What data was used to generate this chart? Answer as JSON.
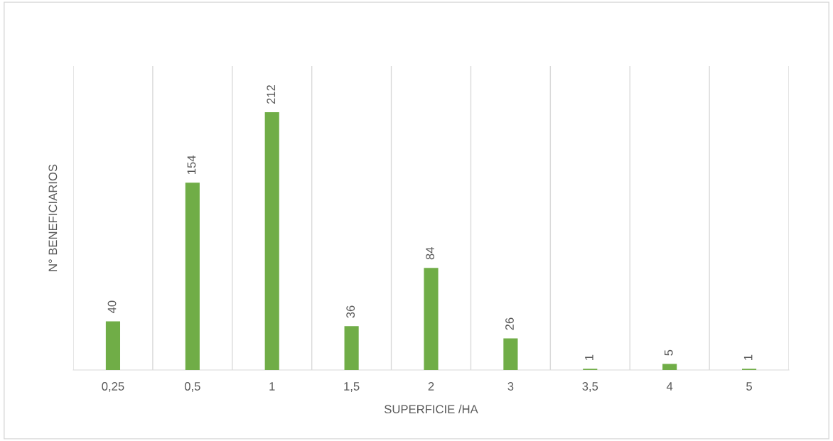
{
  "chart_data": {
    "type": "bar",
    "categories": [
      "0,25",
      "0,5",
      "1",
      "1,5",
      "2",
      "3",
      "3,5",
      "4",
      "5"
    ],
    "values": [
      40,
      154,
      212,
      36,
      84,
      26,
      1,
      5,
      1
    ],
    "color": "#70ad47",
    "xlabel": "SUPERFICIE /HA",
    "ylabel": "N° BENEFICIARIOS",
    "ylim": [
      0,
      250
    ],
    "tick_labels": "x",
    "grid": "x",
    "data_labels": true
  }
}
